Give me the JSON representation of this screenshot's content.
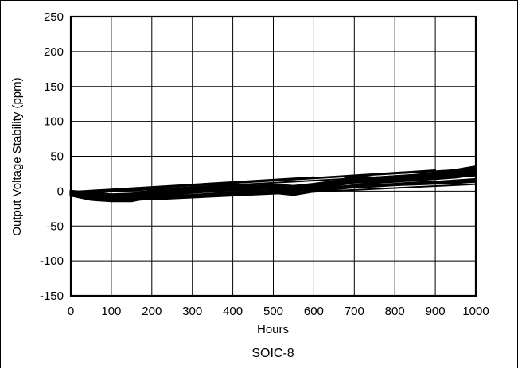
{
  "chart_data": {
    "type": "line",
    "title": "",
    "caption": "SOIC-8",
    "xlabel": "Hours",
    "ylabel": "Output Voltage Stability (ppm)",
    "xlim": [
      0,
      1000
    ],
    "ylim": [
      -150,
      250
    ],
    "x_ticks": [
      0,
      100,
      200,
      300,
      400,
      500,
      600,
      700,
      800,
      900,
      1000
    ],
    "y_ticks": [
      -150,
      -100,
      -50,
      0,
      50,
      100,
      150,
      200,
      250
    ],
    "x_tick_labels": [
      "0",
      "100",
      "200",
      "300",
      "400",
      "500",
      "600",
      "700",
      "800",
      "900",
      "1000"
    ],
    "y_tick_labels": [
      "-150",
      "-100",
      "-50",
      "0",
      "50",
      "100",
      "150",
      "200",
      "250"
    ],
    "grid": true,
    "series_color": "#000000",
    "series": [
      {
        "x": [
          0,
          50,
          100,
          150,
          200,
          250,
          300,
          350,
          400,
          450,
          500,
          550,
          600,
          650,
          700,
          750,
          800,
          850,
          900,
          950,
          1000
        ],
        "values": [
          -2,
          -5,
          -8,
          -6,
          -2,
          0,
          3,
          5,
          7,
          8,
          6,
          5,
          8,
          12,
          17,
          16,
          18,
          20,
          22,
          25,
          30
        ]
      },
      {
        "x": [
          0,
          50,
          100,
          150,
          200,
          250,
          300,
          350,
          400,
          450,
          500,
          550,
          600,
          650,
          700,
          750,
          800,
          850,
          900,
          950,
          1000
        ],
        "values": [
          -5,
          -10,
          -12,
          -12,
          -6,
          -3,
          0,
          2,
          4,
          3,
          2,
          0,
          4,
          8,
          13,
          12,
          14,
          16,
          18,
          20,
          24
        ]
      },
      {
        "x": [
          0,
          50,
          100,
          150,
          200,
          250,
          300,
          350,
          400,
          450,
          500,
          550,
          600,
          650,
          700,
          750,
          800,
          850,
          900,
          950,
          1000
        ],
        "values": [
          -3,
          -8,
          -10,
          -9,
          -4,
          -1,
          2,
          4,
          6,
          5,
          4,
          2,
          6,
          10,
          15,
          14,
          16,
          18,
          20,
          22,
          27
        ]
      },
      {
        "x": [
          0,
          50,
          100,
          150,
          200,
          250,
          300,
          350,
          400,
          450,
          500,
          550,
          600,
          650,
          700,
          750,
          800,
          850,
          900,
          950,
          1000
        ],
        "values": [
          0,
          -3,
          -5,
          -4,
          0,
          2,
          5,
          7,
          9,
          7,
          9,
          7,
          10,
          14,
          20,
          18,
          20,
          22,
          24,
          27,
          32
        ]
      },
      {
        "x": [
          0,
          50,
          100,
          150,
          200,
          250,
          300,
          350,
          400,
          450,
          500,
          550,
          600,
          650,
          700,
          750,
          800,
          850,
          900,
          950,
          1000
        ],
        "values": [
          -6,
          -12,
          -14,
          -14,
          -8,
          -5,
          -2,
          0,
          2,
          0,
          -2,
          -5,
          0,
          5,
          8,
          8,
          10,
          12,
          13,
          15,
          17
        ]
      },
      {
        "x": [
          0,
          50,
          100,
          150,
          200,
          250,
          300,
          350,
          400,
          450,
          500,
          550,
          600,
          650,
          700,
          750,
          800,
          850,
          900,
          950,
          1000
        ],
        "values": [
          -4,
          -7,
          -9,
          -8,
          -3,
          -2,
          1,
          3,
          5,
          4,
          3,
          1,
          5,
          9,
          14,
          13,
          15,
          17,
          19,
          21,
          23
        ]
      },
      {
        "x": [
          0,
          50,
          100,
          150,
          200,
          250,
          300,
          350,
          400,
          450,
          500,
          550,
          600,
          650,
          700,
          750,
          800,
          850,
          900,
          950,
          1000
        ],
        "values": [
          -1,
          -4,
          -6,
          -5,
          -1,
          1,
          4,
          6,
          8,
          6,
          8,
          6,
          9,
          13,
          22,
          19,
          21,
          23,
          26,
          30,
          35
        ]
      },
      {
        "x": [
          0,
          50,
          100,
          150,
          200,
          250,
          300,
          350,
          400,
          450,
          500,
          550,
          600,
          650,
          700,
          750,
          800,
          850,
          900,
          950,
          1000
        ],
        "values": [
          -3,
          -8,
          -11,
          -13,
          -10,
          -8,
          -6,
          -4,
          -2,
          -3,
          -2,
          -4,
          0,
          3,
          6,
          7,
          9,
          10,
          11,
          12,
          14
        ]
      },
      {
        "x": [
          0,
          1000
        ],
        "values": [
          -2,
          32
        ]
      },
      {
        "x": [
          0,
          1000
        ],
        "values": [
          -4,
          28
        ]
      },
      {
        "x": [
          0,
          600
        ],
        "values": [
          -1,
          20
        ]
      },
      {
        "x": [
          100,
          700
        ],
        "values": [
          -14,
          5
        ]
      },
      {
        "x": [
          200,
          1000
        ],
        "values": [
          -12,
          10
        ]
      },
      {
        "x": [
          0,
          900
        ],
        "values": [
          -3,
          30
        ]
      }
    ]
  }
}
